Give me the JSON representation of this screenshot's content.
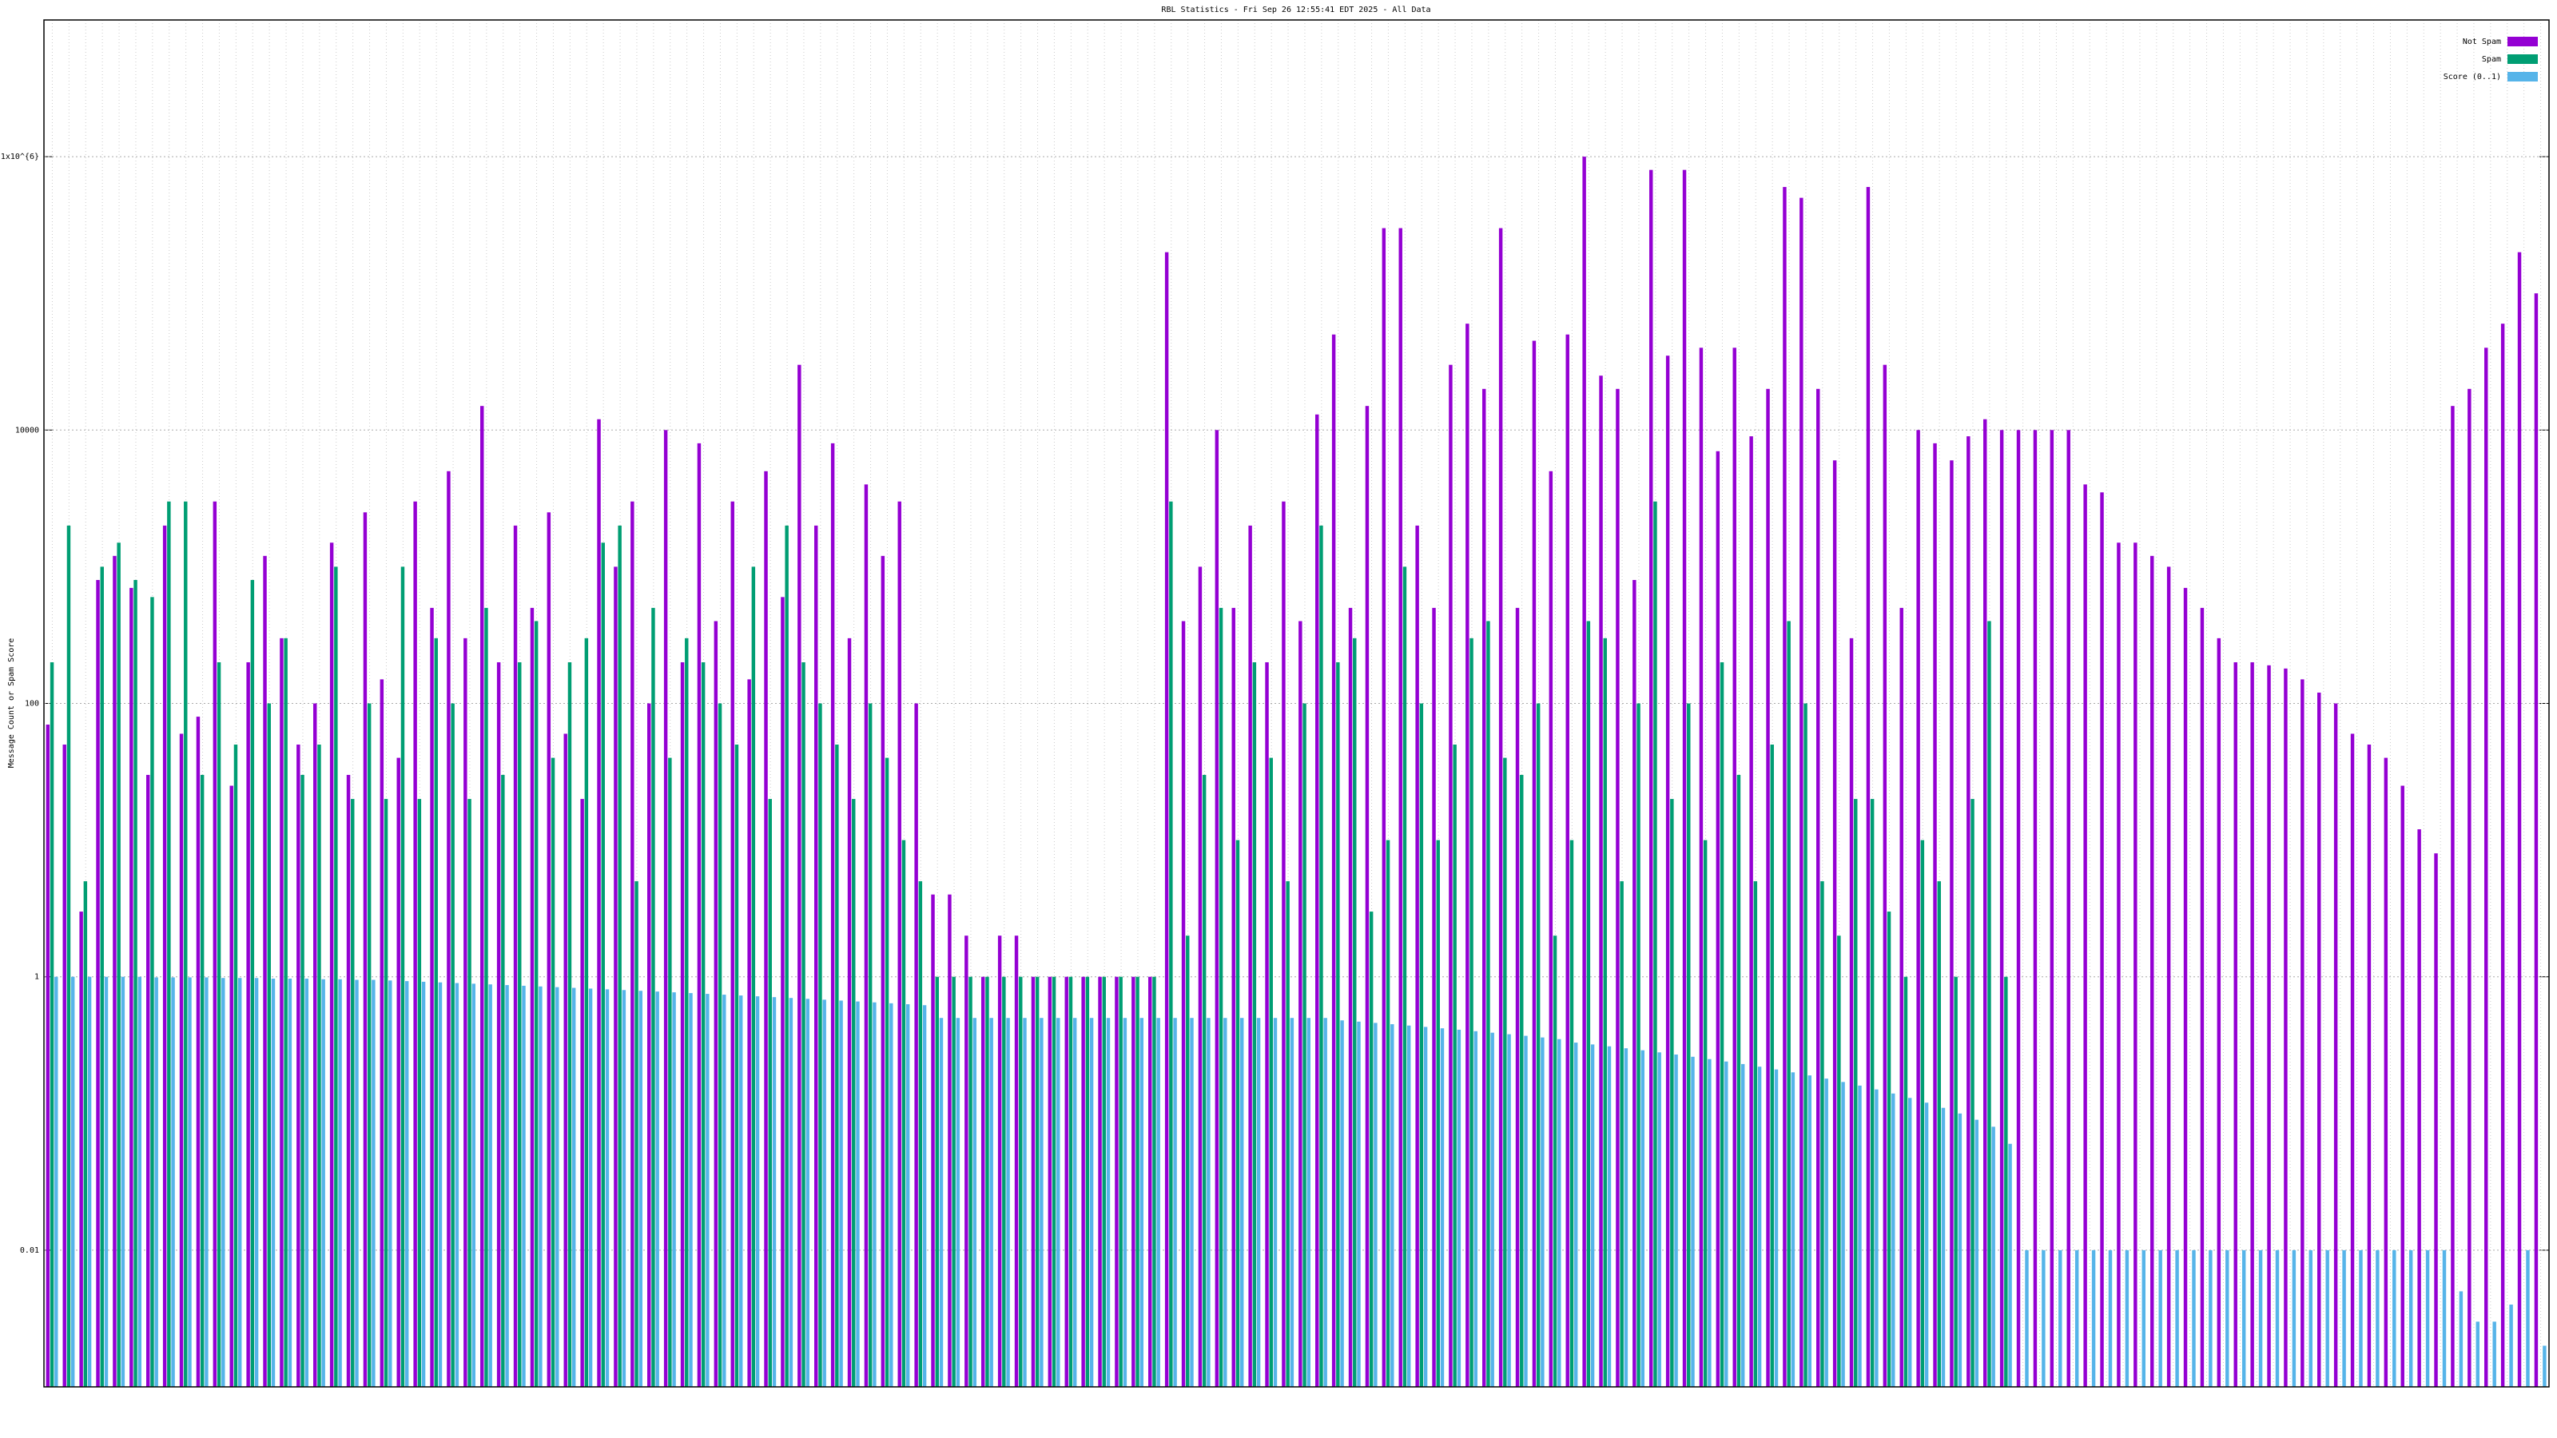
{
  "chart_data": {
    "type": "bar",
    "title": "RBL Statistics - Fri Sep 26 12:55:41 EDT 2025 - All Data",
    "y_label": "Message Count or Spam Score",
    "log_y": true,
    "grid": true,
    "legend_position": "top-right",
    "ylim": [
      0.001,
      10000000
    ],
    "yticks": [
      0.01,
      1,
      100,
      10000,
      {
        "value": 1000000,
        "label": "1x10^{6}"
      }
    ],
    "categories": [
      null,
      null,
      null,
      null,
      null,
      null,
      null,
      null,
      null,
      null,
      null,
      null,
      null,
      null,
      null,
      null,
      null,
      null,
      null,
      null,
      null,
      null,
      null,
      null,
      null,
      null,
      null,
      null,
      null,
      null,
      null,
      null,
      null,
      null,
      null,
      null,
      null,
      null,
      null,
      null,
      null,
      null,
      null,
      null,
      null,
      null,
      null,
      null,
      null,
      null,
      null,
      null,
      null,
      null,
      null,
      null,
      null,
      null,
      null,
      null,
      null,
      null,
      null,
      null,
      null,
      null,
      null,
      null,
      null,
      null,
      null,
      null,
      null,
      null,
      null,
      null,
      null,
      null,
      null,
      null,
      null,
      null,
      null,
      null,
      null,
      null,
      null,
      null,
      null,
      null,
      null,
      null,
      null,
      null,
      null,
      null,
      null,
      null,
      null,
      null,
      null,
      null,
      null,
      null,
      null,
      null,
      null,
      null,
      null,
      null,
      null,
      null,
      null,
      null,
      null,
      null,
      null,
      null,
      null,
      null,
      null,
      null,
      null,
      null,
      null,
      null,
      null,
      null,
      null,
      null,
      null,
      null,
      null,
      null,
      null,
      null,
      null,
      null,
      null,
      null,
      null,
      null,
      null,
      null,
      null,
      null,
      null,
      null,
      null,
      null
    ],
    "series": [
      {
        "name": "Not Spam",
        "color": "#9400d3",
        "values": [
          70,
          50,
          3,
          800,
          1200,
          700,
          30,
          2000,
          60,
          80,
          3000,
          25,
          200,
          1200,
          300,
          50,
          100,
          1500,
          30,
          2500,
          150,
          40,
          3000,
          500,
          5000,
          300,
          15000,
          200,
          2000,
          500,
          2500,
          60,
          20,
          12000,
          1000,
          3000,
          100,
          10000,
          200,
          8000,
          400,
          3000,
          150,
          5000,
          600,
          30000,
          2000,
          8000,
          300,
          4000,
          1200,
          3000,
          100,
          4,
          4,
          2,
          1,
          2,
          2,
          1,
          1,
          1,
          1,
          1,
          1,
          1,
          1,
          200000,
          400,
          1000,
          10000,
          500,
          2000,
          200,
          3000,
          400,
          13000,
          50000,
          500,
          15000,
          300000,
          300000,
          2000,
          500,
          30000,
          60000,
          20000,
          300000,
          500,
          45000,
          5000,
          50000,
          1000000,
          25000,
          20000,
          800,
          800000,
          35000,
          800000,
          40000,
          7000,
          40000,
          9000,
          20000,
          600000,
          500000,
          20000,
          6000,
          300,
          600000,
          30000,
          500,
          10000,
          8000,
          6000,
          9000,
          12000,
          10000,
          10000,
          10000,
          10000,
          10000,
          4000,
          3500,
          1500,
          1500,
          1200,
          1000,
          700,
          500,
          300,
          200,
          200,
          190,
          180,
          150,
          120,
          100,
          60,
          50,
          40,
          25,
          12,
          8,
          15000,
          20000,
          40000,
          60000,
          200000,
          100000
        ]
      },
      {
        "name": "Spam",
        "color": "#009e73",
        "values": [
          200,
          2000,
          5,
          1000,
          1500,
          800,
          600,
          3000,
          3000,
          30,
          200,
          50,
          800,
          100,
          300,
          30,
          50,
          1000,
          20,
          100,
          20,
          1000,
          20,
          300,
          100,
          20,
          500,
          30,
          200,
          400,
          40,
          200,
          300,
          1500,
          2000,
          5,
          500,
          40,
          300,
          200,
          100,
          50,
          1000,
          20,
          2000,
          200,
          100,
          50,
          20,
          100,
          40,
          10,
          5,
          1,
          1,
          1,
          1,
          1,
          1,
          1,
          1,
          1,
          1,
          1,
          1,
          1,
          1,
          3000,
          2,
          30,
          500,
          10,
          200,
          40,
          5,
          100,
          2000,
          200,
          300,
          3,
          10,
          1000,
          100,
          10,
          50,
          300,
          400,
          40,
          30,
          100,
          2,
          10,
          400,
          300,
          5,
          100,
          3000,
          20,
          100,
          10,
          200,
          30,
          5,
          50,
          400,
          100,
          5,
          2,
          20,
          20,
          3,
          1,
          10,
          5,
          1,
          20,
          400,
          1,
          0,
          0,
          0,
          0,
          0,
          0,
          0,
          0,
          0,
          0,
          0,
          0,
          0,
          0,
          0,
          0,
          0,
          0,
          0,
          0,
          0,
          0,
          0,
          0,
          0,
          0,
          0,
          0,
          0,
          0,
          0,
          0
        ]
      },
      {
        "name": "Score (0..1)",
        "color": "#56b4e9",
        "values": [
          1,
          1,
          1,
          1,
          1,
          1,
          0.99,
          0.99,
          0.99,
          0.99,
          0.98,
          0.98,
          0.98,
          0.97,
          0.97,
          0.97,
          0.96,
          0.96,
          0.95,
          0.95,
          0.94,
          0.93,
          0.92,
          0.91,
          0.9,
          0.89,
          0.88,
          0.87,
          0.86,
          0.85,
          0.84,
          0.83,
          0.82,
          0.81,
          0.8,
          0.79,
          0.78,
          0.77,
          0.76,
          0.75,
          0.74,
          0.73,
          0.72,
          0.71,
          0.7,
          0.69,
          0.68,
          0.67,
          0.66,
          0.65,
          0.64,
          0.63,
          0.62,
          0.5,
          0.5,
          0.5,
          0.5,
          0.5,
          0.5,
          0.5,
          0.5,
          0.5,
          0.5,
          0.5,
          0.5,
          0.5,
          0.5,
          0.5,
          0.5,
          0.5,
          0.5,
          0.5,
          0.5,
          0.5,
          0.5,
          0.5,
          0.5,
          0.48,
          0.47,
          0.46,
          0.45,
          0.44,
          0.43,
          0.42,
          0.41,
          0.4,
          0.39,
          0.38,
          0.37,
          0.36,
          0.35,
          0.33,
          0.32,
          0.31,
          0.3,
          0.29,
          0.28,
          0.27,
          0.26,
          0.25,
          0.24,
          0.23,
          0.22,
          0.21,
          0.2,
          0.19,
          0.18,
          0.17,
          0.16,
          0.15,
          0.14,
          0.13,
          0.12,
          0.11,
          0.1,
          0.09,
          0.08,
          0.06,
          0.01,
          0.01,
          0.01,
          0.01,
          0.01,
          0.01,
          0.01,
          0.01,
          0.01,
          0.01,
          0.01,
          0.01,
          0.01,
          0.01,
          0.01,
          0.01,
          0.01,
          0.01,
          0.01,
          0.01,
          0.01,
          0.01,
          0.01,
          0.01,
          0.01,
          0.01,
          0.005,
          0.003,
          0.003,
          0.004,
          0.01,
          0.002
        ]
      }
    ]
  }
}
